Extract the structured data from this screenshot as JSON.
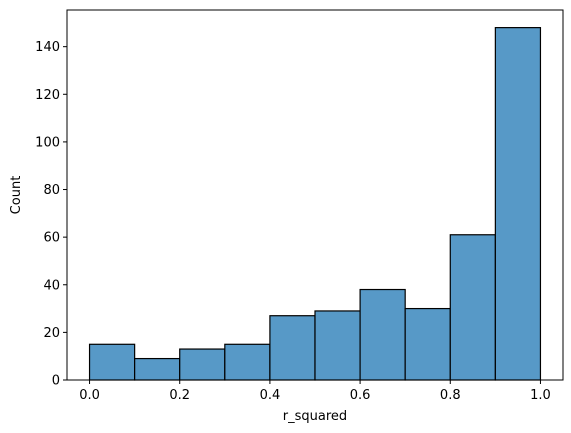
{
  "chart_data": {
    "type": "bar",
    "title": "",
    "xlabel": "r_squared",
    "ylabel": "Count",
    "bins": [
      {
        "x0": 0.0,
        "x1": 0.1,
        "count": 15
      },
      {
        "x0": 0.1,
        "x1": 0.2,
        "count": 9
      },
      {
        "x0": 0.2,
        "x1": 0.3,
        "count": 13
      },
      {
        "x0": 0.3,
        "x1": 0.4,
        "count": 15
      },
      {
        "x0": 0.4,
        "x1": 0.5,
        "count": 27
      },
      {
        "x0": 0.5,
        "x1": 0.6,
        "count": 29
      },
      {
        "x0": 0.6,
        "x1": 0.7,
        "count": 38
      },
      {
        "x0": 0.7,
        "x1": 0.8,
        "count": 30
      },
      {
        "x0": 0.8,
        "x1": 0.9,
        "count": 61
      },
      {
        "x0": 0.9,
        "x1": 1.0,
        "count": 148
      }
    ],
    "xlim": [
      -0.05,
      1.05
    ],
    "ylim": [
      0,
      155.4
    ],
    "xticks": [
      0.0,
      0.2,
      0.4,
      0.6,
      0.8,
      1.0
    ],
    "xtick_labels": [
      "0.0",
      "0.2",
      "0.4",
      "0.6",
      "0.8",
      "1.0"
    ],
    "yticks": [
      0,
      20,
      40,
      60,
      80,
      100,
      120,
      140
    ],
    "ytick_labels": [
      "0",
      "20",
      "40",
      "60",
      "80",
      "100",
      "120",
      "140"
    ],
    "grid": false,
    "bar_color": "#5799c7",
    "bar_edge_color": "#000000"
  }
}
